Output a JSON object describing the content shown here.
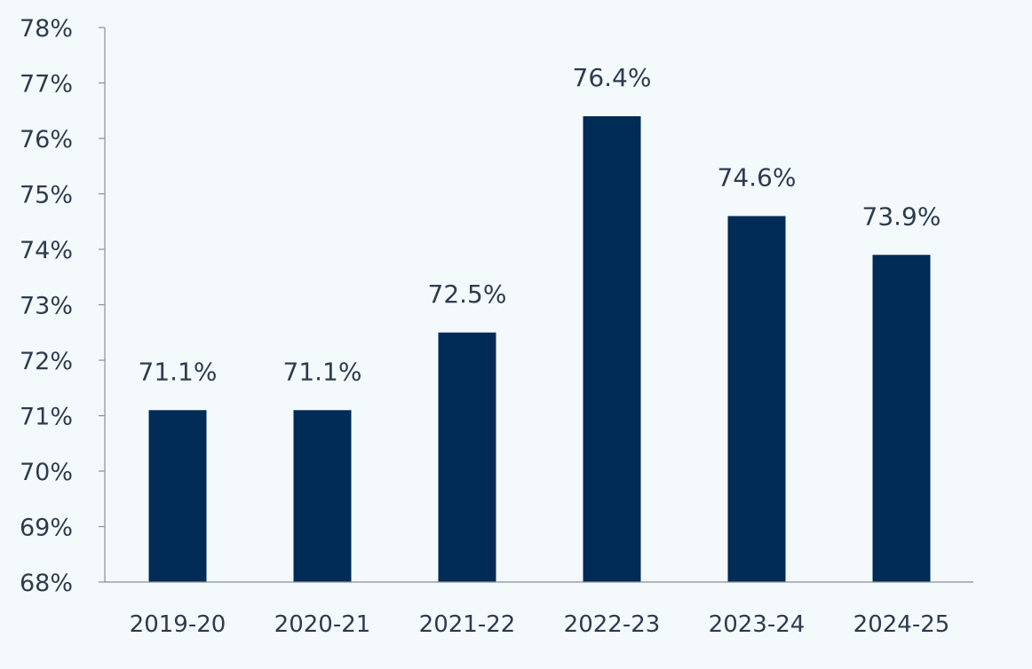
{
  "chart_data": {
    "type": "bar",
    "title": "",
    "xlabel": "",
    "ylabel": "",
    "categories": [
      "2019-20",
      "2020-21",
      "2021-22",
      "2022-23",
      "2023-24",
      "2024-25"
    ],
    "values": [
      71.1,
      71.1,
      72.5,
      76.4,
      74.6,
      73.9
    ],
    "data_labels": [
      "71.1%",
      "71.1%",
      "72.5%",
      "76.4%",
      "74.6%",
      "73.9%"
    ],
    "ylim": [
      68,
      78
    ],
    "yticks": [
      68,
      69,
      70,
      71,
      72,
      73,
      74,
      75,
      76,
      77,
      78
    ],
    "ytick_labels": [
      "68%",
      "69%",
      "70%",
      "71%",
      "72%",
      "73%",
      "74%",
      "75%",
      "76%",
      "77%",
      "78%"
    ],
    "grid": false,
    "legend": "none",
    "bar_color": "#002b57",
    "axis_color": "#8a8f96",
    "text_color": "#2e3b4e",
    "background_color": "#f4f9fc"
  }
}
